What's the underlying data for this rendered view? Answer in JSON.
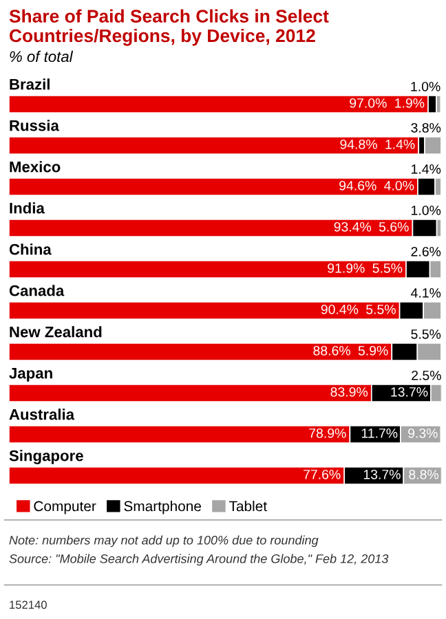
{
  "chart_data": {
    "type": "bar",
    "orientation": "horizontal",
    "stacked": true,
    "title": "Share of Paid Search Clicks in Select Countries/Regions, by Device, 2012",
    "subtitle": "% of total",
    "categories": [
      "Brazil",
      "Russia",
      "Mexico",
      "India",
      "China",
      "Canada",
      "New Zealand",
      "Japan",
      "Australia",
      "Singapore"
    ],
    "series": [
      {
        "name": "Computer",
        "color": "#e60000",
        "values": [
          97.0,
          94.8,
          94.6,
          93.4,
          91.9,
          90.4,
          88.6,
          83.9,
          78.9,
          77.6
        ],
        "value_labels": [
          "97.0%",
          "94.8%",
          "94.6%",
          "93.4%",
          "91.9%",
          "90.4%",
          "88.6%",
          "83.9%",
          "78.9%",
          "77.6%"
        ]
      },
      {
        "name": "Smartphone",
        "color": "#000000",
        "values": [
          1.9,
          1.4,
          4.0,
          5.6,
          5.5,
          5.5,
          5.9,
          13.7,
          11.7,
          13.7
        ],
        "value_labels": [
          "1.9%",
          "1.4%",
          "4.0%",
          "5.6%",
          "5.5%",
          "5.5%",
          "5.9%",
          "13.7%",
          "11.7%",
          "13.7%"
        ]
      },
      {
        "name": "Tablet",
        "color": "#a6a6a6",
        "values": [
          1.0,
          3.8,
          1.4,
          1.0,
          2.6,
          4.1,
          5.5,
          2.5,
          9.3,
          8.8
        ],
        "value_labels": [
          "1.0%",
          "3.8%",
          "1.4%",
          "1.0%",
          "2.6%",
          "4.1%",
          "5.5%",
          "2.5%",
          "9.3%",
          "8.8%"
        ]
      }
    ],
    "legend": "bottom left",
    "annotations": [
      "Note: numbers may not add up to 100% due to rounding",
      "Source: \"Mobile Search Advertising Around the Globe,\" Feb 12, 2013",
      "152140"
    ]
  }
}
